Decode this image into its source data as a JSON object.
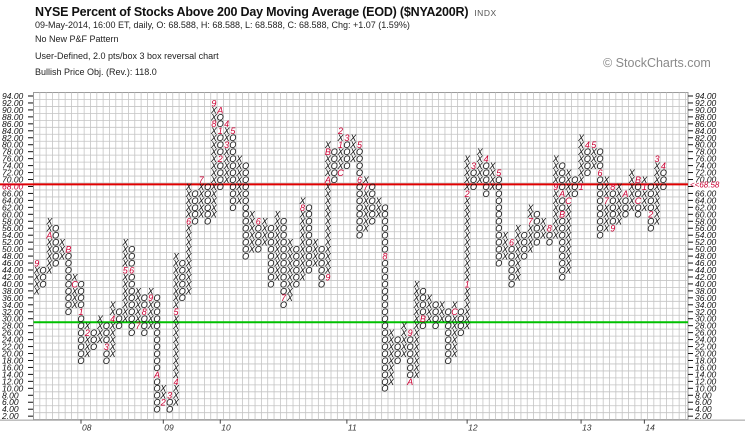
{
  "header": {
    "title": "NYSE Percent of Stocks Above 200 Day Moving Average (EOD) ($NYA200R)",
    "exchange": "INDX",
    "quote_line": "09-May-2014, 16:00 ET, daily, O: 68.588, H: 68.588, L: 68.588, C: 68.588, Chg: +1.07 (1.59%)",
    "pattern": "No New P&F Pattern",
    "chart_settings": "User-Defined, 2.0 pts/box 3 box reversal chart",
    "price_objective": "Bullish Price Obj. (Rev.): 118.0",
    "watermark": "© StockCharts.com"
  },
  "colors": {
    "x_mark": "#111111",
    "o_mark": "#111111",
    "month_label": "#cc0033",
    "last_price_line": "#e00000",
    "reference_line": "#00c000",
    "grid": "#c4c4c4"
  },
  "chart_data": {
    "type": "point-and-figure",
    "box_size": 2.0,
    "reversal": 3,
    "ylim": [
      2,
      94
    ],
    "y_ticks": [
      "94.00",
      "92.00",
      "90.00",
      "88.00",
      "86.00",
      "84.00",
      "82.00",
      "80.00",
      "78.00",
      "76.00",
      "74.00",
      "72.00",
      "70.00",
      "68.00",
      "66.00",
      "64.00",
      "62.00",
      "60.00",
      "58.00",
      "56.00",
      "54.00",
      "52.00",
      "50.00",
      "48.00",
      "46.00",
      "44.00",
      "42.00",
      "40.00",
      "38.00",
      "36.00",
      "34.00",
      "32.00",
      "30.00",
      "28.00",
      "26.00",
      "24.00",
      "22.00",
      "20.00",
      "18.00",
      "16.00",
      "14.00",
      "12.00",
      "10.00",
      "8.00",
      "6.00",
      "4.00",
      "2.00"
    ],
    "grid": true,
    "last_price": 68.588,
    "last_price_label": "<<68.58",
    "reference_line_value": 29,
    "x_labels": [
      {
        "label": "08",
        "column": 8
      },
      {
        "label": "09",
        "column": 21
      },
      {
        "label": "10",
        "column": 30
      },
      {
        "label": "11",
        "column": 50
      },
      {
        "label": "12",
        "column": 69
      },
      {
        "label": "13",
        "column": 87
      },
      {
        "label": "14",
        "column": 97
      }
    ],
    "columns": [
      [
        "X",
        38,
        46,
        {
          "46": "9"
        }
      ],
      [
        "O",
        40,
        44,
        {}
      ],
      [
        "X",
        44,
        58,
        {
          "54": "A"
        }
      ],
      [
        "O",
        46,
        56,
        {}
      ],
      [
        "X",
        48,
        52,
        {}
      ],
      [
        "O",
        32,
        50,
        {
          "50": "B"
        }
      ],
      [
        "X",
        34,
        42,
        {
          "40": "C"
        }
      ],
      [
        "O",
        18,
        40,
        {
          "32": "1"
        }
      ],
      [
        "X",
        20,
        28,
        {
          "26": "2"
        }
      ],
      [
        "O",
        22,
        26,
        {}
      ],
      [
        "X",
        24,
        30,
        {}
      ],
      [
        "O",
        18,
        28,
        {
          "22": "3"
        }
      ],
      [
        "X",
        20,
        34,
        {
          "30": "4"
        }
      ],
      [
        "O",
        28,
        32,
        {}
      ],
      [
        "X",
        30,
        52,
        {
          "44": "5"
        }
      ],
      [
        "O",
        26,
        50,
        {
          "44": "6"
        }
      ],
      [
        "X",
        28,
        38,
        {
          "28": "7"
        }
      ],
      [
        "O",
        26,
        36,
        {
          "32": "8"
        }
      ],
      [
        "X",
        28,
        38,
        {
          "36": "9"
        }
      ],
      [
        "O",
        4,
        36,
        {
          "14": "A"
        }
      ],
      [
        "X",
        6,
        10,
        {
          "6": "2"
        }
      ],
      [
        "O",
        4,
        8,
        {
          "8": "3"
        }
      ],
      [
        "X",
        6,
        48,
        {
          "12": "4",
          "32": "5"
        }
      ],
      [
        "O",
        36,
        46,
        {}
      ],
      [
        "X",
        38,
        68,
        {
          "58": "6"
        }
      ],
      [
        "O",
        58,
        66,
        {}
      ],
      [
        "X",
        60,
        70,
        {
          "70": "7"
        }
      ],
      [
        "O",
        58,
        68,
        {}
      ],
      [
        "X",
        60,
        92,
        {
          "86": "8",
          "92": "9"
        }
      ],
      [
        "O",
        68,
        90,
        {
          "90": "A",
          "84": "1",
          "76": "2"
        }
      ],
      [
        "X",
        70,
        86,
        {
          "80": "3",
          "86": "4"
        }
      ],
      [
        "O",
        62,
        84,
        {
          "84": "5"
        }
      ],
      [
        "X",
        64,
        76,
        {}
      ],
      [
        "O",
        48,
        74,
        {}
      ],
      [
        "X",
        50,
        60,
        {}
      ],
      [
        "O",
        50,
        58,
        {
          "58": "6"
        }
      ],
      [
        "X",
        52,
        58,
        {}
      ],
      [
        "O",
        40,
        56,
        {}
      ],
      [
        "X",
        42,
        60,
        {}
      ],
      [
        "O",
        34,
        58,
        {
          "36": "7"
        }
      ],
      [
        "X",
        36,
        52,
        {}
      ],
      [
        "O",
        40,
        50,
        {}
      ],
      [
        "X",
        42,
        64,
        {
          "62": "8"
        }
      ],
      [
        "O",
        44,
        62,
        {}
      ],
      [
        "X",
        46,
        52,
        {}
      ],
      [
        "O",
        40,
        50,
        {}
      ],
      [
        "X",
        42,
        80,
        {
          "42": "9",
          "70": "A",
          "78": "B"
        }
      ],
      [
        "O",
        70,
        78,
        {}
      ],
      [
        "X",
        72,
        84,
        {
          "72": "C",
          "80": "1",
          "84": "2"
        }
      ],
      [
        "O",
        74,
        82,
        {
          "82": "3"
        }
      ],
      [
        "X",
        76,
        82,
        {}
      ],
      [
        "O",
        54,
        80,
        {
          "80": "5",
          "70": "6"
        }
      ],
      [
        "X",
        56,
        70,
        {
          "68": "7"
        }
      ],
      [
        "O",
        58,
        68,
        {}
      ],
      [
        "X",
        60,
        64,
        {}
      ],
      [
        "O",
        10,
        62,
        {
          "48": "8"
        }
      ],
      [
        "X",
        12,
        26,
        {}
      ],
      [
        "O",
        18,
        24,
        {}
      ],
      [
        "X",
        20,
        28,
        {}
      ],
      [
        "O",
        12,
        26,
        {
          "26": "9",
          "12": "A"
        }
      ],
      [
        "X",
        14,
        40,
        {}
      ],
      [
        "O",
        28,
        38,
        {
          "30": "B"
        }
      ],
      [
        "X",
        30,
        36,
        {}
      ],
      [
        "O",
        28,
        34,
        {}
      ],
      [
        "X",
        30,
        34,
        {}
      ],
      [
        "O",
        18,
        32,
        {}
      ],
      [
        "X",
        20,
        34,
        {
          "32": "C"
        }
      ],
      [
        "O",
        26,
        32,
        {}
      ],
      [
        "X",
        28,
        76,
        {
          "40": "1",
          "66": "2"
        }
      ],
      [
        "O",
        68,
        74,
        {
          "74": "3"
        }
      ],
      [
        "X",
        70,
        78,
        {}
      ],
      [
        "O",
        66,
        76,
        {
          "76": "4"
        }
      ],
      [
        "X",
        68,
        74,
        {}
      ],
      [
        "O",
        46,
        72,
        {
          "72": "5"
        }
      ],
      [
        "X",
        48,
        54,
        {}
      ],
      [
        "O",
        40,
        52,
        {
          "52": "6"
        }
      ],
      [
        "X",
        42,
        56,
        {}
      ],
      [
        "O",
        48,
        54,
        {}
      ],
      [
        "X",
        50,
        62,
        {
          "58": "7"
        }
      ],
      [
        "O",
        52,
        60,
        {}
      ],
      [
        "X",
        54,
        58,
        {}
      ],
      [
        "O",
        52,
        56,
        {
          "56": "8"
        }
      ],
      [
        "X",
        54,
        76,
        {
          "68": "9"
        }
      ],
      [
        "O",
        42,
        74,
        {
          "66": "A",
          "60": "B"
        }
      ],
      [
        "X",
        44,
        72,
        {
          "64": "C"
        }
      ],
      [
        "O",
        66,
        70,
        {}
      ],
      [
        "X",
        68,
        82,
        {
          "68": "1"
        }
      ],
      [
        "O",
        72,
        80,
        {
          "80": "4"
        }
      ],
      [
        "X",
        74,
        80,
        {
          "80": "5"
        }
      ],
      [
        "O",
        54,
        78,
        {
          "72": "6"
        }
      ],
      [
        "X",
        56,
        70,
        {
          "64": "7"
        }
      ],
      [
        "O",
        56,
        68,
        {
          "68": "8",
          "56": "9"
        }
      ],
      [
        "X",
        58,
        68,
        {}
      ],
      [
        "O",
        60,
        66,
        {
          "66": "A"
        }
      ],
      [
        "X",
        62,
        72,
        {}
      ],
      [
        "O",
        60,
        70,
        {
          "70": "B",
          "64": "C"
        }
      ],
      [
        "X",
        62,
        70,
        {
          "68": "1"
        }
      ],
      [
        "O",
        56,
        68,
        {
          "60": "2"
        }
      ],
      [
        "X",
        58,
        76,
        {
          "76": "3"
        }
      ],
      [
        "O",
        68,
        74,
        {
          "74": "4"
        }
      ]
    ]
  }
}
